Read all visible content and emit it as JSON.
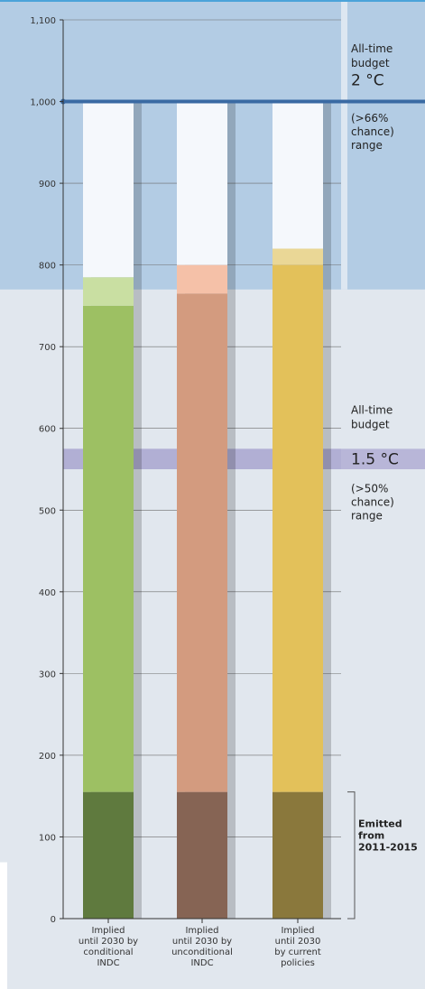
{
  "chart_data": {
    "type": "bar",
    "title": "",
    "xlabel": "",
    "ylabel": "",
    "ylim": [
      0,
      1100
    ],
    "yticks": [
      0,
      100,
      200,
      300,
      400,
      500,
      600,
      700,
      800,
      900,
      1000,
      1100
    ],
    "ytick_labels": [
      "0",
      "100",
      "200",
      "300",
      "400",
      "500",
      "600",
      "700",
      "800",
      "900",
      "1,000",
      "1,100"
    ],
    "grid": true,
    "categories": [
      [
        "Implied",
        "until 2030 by",
        "conditional",
        "INDC"
      ],
      [
        "Implied",
        "until 2030 by",
        "unconditional",
        "INDC"
      ],
      [
        "Implied",
        "until 2030",
        "by current",
        "policies"
      ]
    ],
    "series": [
      {
        "values": [
          155,
          155,
          155
        ]
      },
      {
        "values": [
          595,
          610,
          645
        ]
      },
      {
        "values": [
          35,
          35,
          20
        ]
      },
      {
        "values": [
          215,
          200,
          180
        ]
      }
    ],
    "series_colors": [
      [
        "#5f7a3e",
        "#9dc063",
        "#c9dfa2",
        "#f5f8fc"
      ],
      [
        "#866454",
        "#d39b7f",
        "#f5c1a8",
        "#f5f8fc"
      ],
      [
        "#8a783c",
        "#e3c15a",
        "#ead796",
        "#f5f8fc"
      ]
    ],
    "budget_2c": {
      "range": [
        770,
        1100
      ],
      "line_value": 1000,
      "label_lines": [
        "All-time",
        "budget"
      ],
      "temperature": "2 °C",
      "chance_lines": [
        "(>66%",
        "chance)",
        "range"
      ],
      "color": "#b3cce4",
      "line_color": "#3a6aa3"
    },
    "budget_15c": {
      "range": [
        550,
        575
      ],
      "label_lines": [
        "All-time",
        "budget"
      ],
      "temperature": "1.5 °C",
      "chance_lines": [
        "(>50%",
        "chance)",
        "range"
      ],
      "color": "#a9a6d0"
    },
    "emitted": {
      "range": [
        0,
        155
      ],
      "label_lines": [
        "Emitted",
        "from",
        "2011-2015"
      ]
    },
    "background": "#e1e7ee"
  }
}
